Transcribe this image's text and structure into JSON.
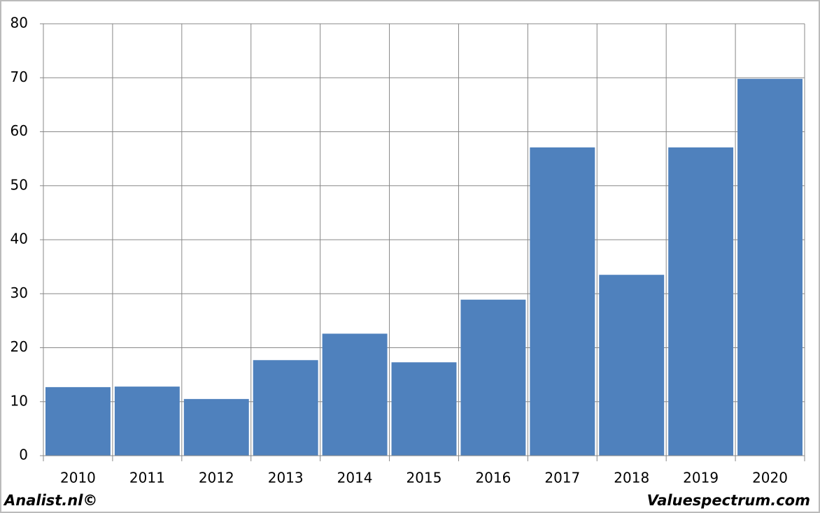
{
  "chart_data": {
    "type": "bar",
    "categories": [
      "2010",
      "2011",
      "2012",
      "2013",
      "2014",
      "2015",
      "2016",
      "2017",
      "2018",
      "2019",
      "2020"
    ],
    "values": [
      12.7,
      12.8,
      10.5,
      17.7,
      22.6,
      17.3,
      28.9,
      57.1,
      33.5,
      57.1,
      69.8
    ],
    "color": "#4f81bd",
    "ylim": [
      0,
      80
    ],
    "yticks": [
      0,
      10,
      20,
      30,
      40,
      50,
      60,
      70,
      80
    ],
    "grid": true
  },
  "footer": {
    "left": "Analist.nl©",
    "right": "Valuespectrum.com"
  }
}
